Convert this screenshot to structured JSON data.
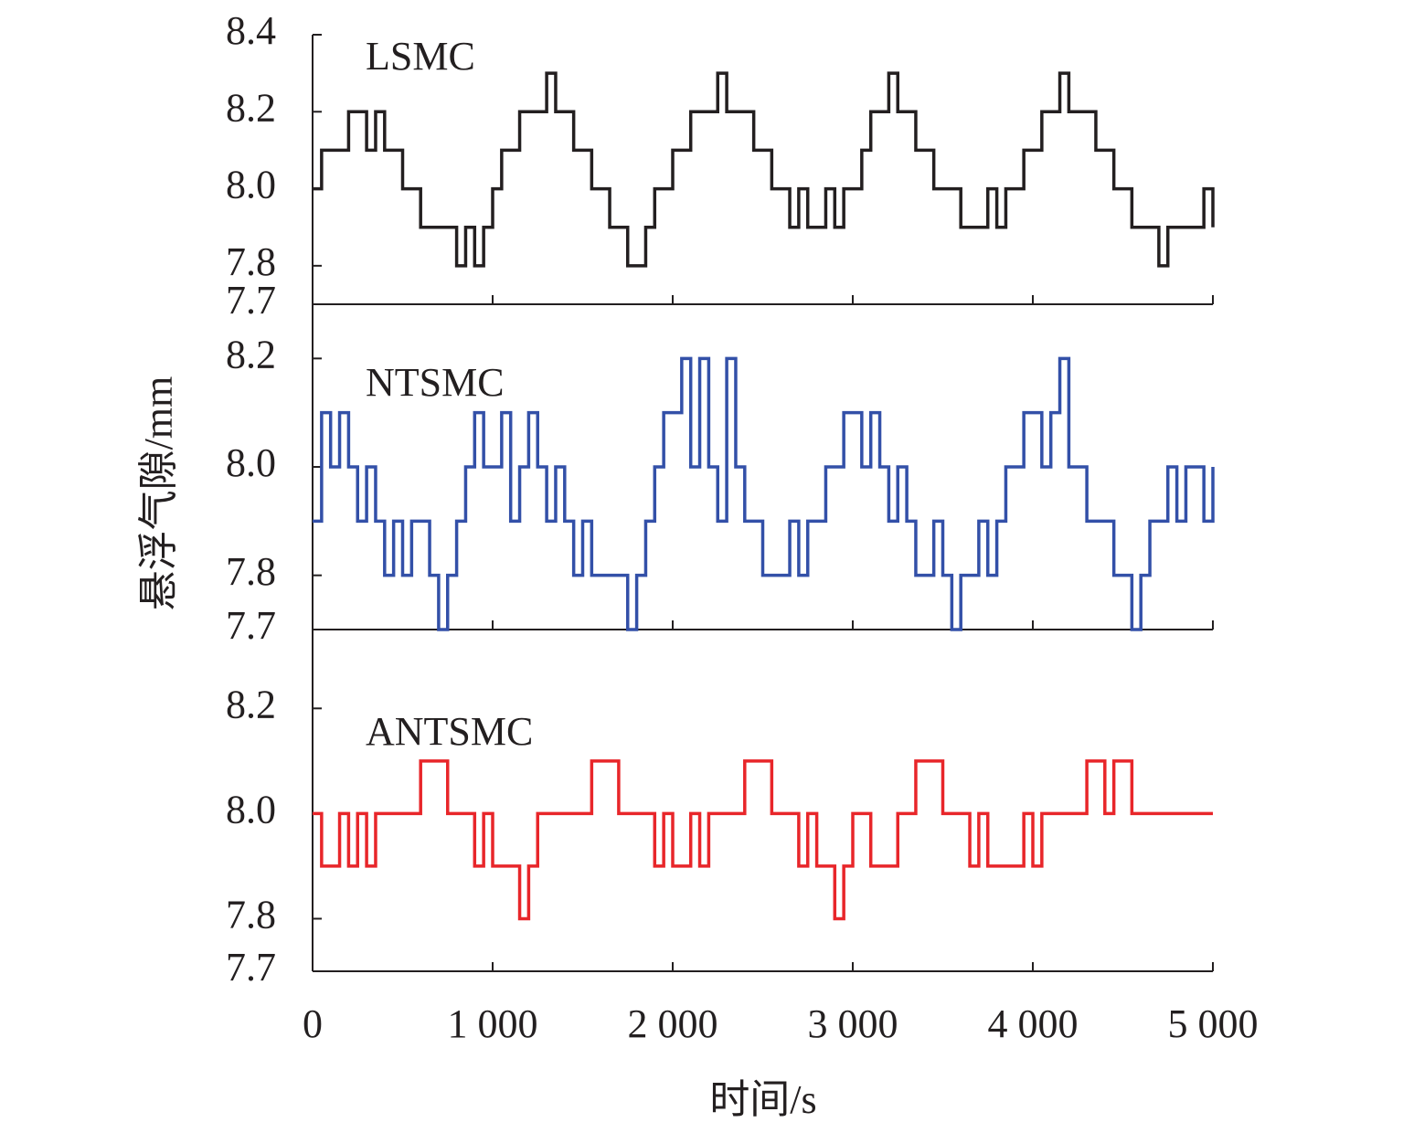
{
  "chart_data": {
    "type": "line",
    "xlabel": "时间/s",
    "ylabel": "悬浮气隙/mm",
    "xlim": [
      0,
      5000
    ],
    "xticks": [
      0,
      {
        "value": 1000,
        "label": "1 000"
      },
      {
        "value": 2000,
        "label": "2 000"
      },
      {
        "value": 3000,
        "label": "3 000"
      },
      {
        "value": 4000,
        "label": "4 000"
      },
      {
        "value": 5000,
        "label": "5 000"
      }
    ],
    "x": [
      0,
      50,
      100,
      150,
      200,
      250,
      300,
      350,
      400,
      450,
      500,
      550,
      600,
      650,
      700,
      750,
      800,
      850,
      900,
      950,
      1000,
      1050,
      1100,
      1150,
      1200,
      1250,
      1300,
      1350,
      1400,
      1450,
      1500,
      1550,
      1600,
      1650,
      1700,
      1750,
      1800,
      1850,
      1900,
      1950,
      2000,
      2050,
      2100,
      2150,
      2200,
      2250,
      2300,
      2350,
      2400,
      2450,
      2500,
      2550,
      2600,
      2650,
      2700,
      2750,
      2800,
      2850,
      2900,
      2950,
      3000,
      3050,
      3100,
      3150,
      3200,
      3250,
      3300,
      3350,
      3400,
      3450,
      3500,
      3550,
      3600,
      3650,
      3700,
      3750,
      3800,
      3850,
      3900,
      3950,
      4000,
      4050,
      4100,
      4150,
      4200,
      4250,
      4300,
      4350,
      4400,
      4450,
      4500,
      4550,
      4600,
      4650,
      4700,
      4750,
      4800,
      4850,
      4900,
      4950,
      5000
    ],
    "series": [
      {
        "name": "LSMC",
        "color": "#231f20",
        "ylim": [
          7.7,
          8.4
        ],
        "yticks": [
          7.7,
          7.8,
          {
            "value": 8,
            "label": "8.0"
          },
          8.2,
          8.4
        ],
        "values": [
          8.0,
          8.1,
          8.1,
          8.1,
          8.2,
          8.2,
          8.1,
          8.2,
          8.1,
          8.1,
          8.0,
          8.0,
          7.9,
          7.9,
          7.9,
          7.9,
          7.8,
          7.9,
          7.8,
          7.9,
          8.0,
          8.1,
          8.1,
          8.2,
          8.2,
          8.2,
          8.3,
          8.2,
          8.2,
          8.1,
          8.1,
          8.0,
          8.0,
          7.9,
          7.9,
          7.8,
          7.8,
          7.9,
          8.0,
          8.0,
          8.1,
          8.1,
          8.2,
          8.2,
          8.2,
          8.3,
          8.2,
          8.2,
          8.2,
          8.1,
          8.1,
          8.0,
          8.0,
          7.9,
          8.0,
          7.9,
          7.9,
          8.0,
          7.9,
          8.0,
          8.0,
          8.1,
          8.2,
          8.2,
          8.3,
          8.2,
          8.2,
          8.1,
          8.1,
          8.0,
          8.0,
          8.0,
          7.9,
          7.9,
          7.9,
          8.0,
          7.9,
          8.0,
          8.0,
          8.1,
          8.1,
          8.2,
          8.2,
          8.3,
          8.2,
          8.2,
          8.2,
          8.1,
          8.1,
          8.0,
          8.0,
          7.9,
          7.9,
          7.9,
          7.8,
          7.9,
          7.9,
          7.9,
          7.9,
          8.0,
          7.9
        ]
      },
      {
        "name": "NTSMC",
        "color": "#3350a8",
        "ylim": [
          7.7,
          8.3
        ],
        "yticks": [
          7.7,
          7.8,
          {
            "value": 8,
            "label": "8.0"
          },
          8.2
        ],
        "values": [
          7.9,
          8.1,
          8.0,
          8.1,
          8.0,
          7.9,
          8.0,
          7.9,
          7.8,
          7.9,
          7.8,
          7.9,
          7.9,
          7.8,
          7.7,
          7.8,
          7.9,
          8.0,
          8.1,
          8.0,
          8.0,
          8.1,
          7.9,
          8.0,
          8.1,
          8.0,
          7.9,
          8.0,
          7.9,
          7.8,
          7.9,
          7.8,
          7.8,
          7.8,
          7.8,
          7.7,
          7.8,
          7.9,
          8.0,
          8.1,
          8.1,
          8.2,
          8.0,
          8.2,
          8.0,
          7.9,
          8.2,
          8.0,
          7.9,
          7.9,
          7.8,
          7.8,
          7.8,
          7.9,
          7.8,
          7.9,
          7.9,
          8.0,
          8.0,
          8.1,
          8.1,
          8.0,
          8.1,
          8.0,
          7.9,
          8.0,
          7.9,
          7.8,
          7.8,
          7.9,
          7.8,
          7.7,
          7.8,
          7.8,
          7.9,
          7.8,
          7.9,
          8.0,
          8.0,
          8.1,
          8.1,
          8.0,
          8.1,
          8.2,
          8.0,
          8.0,
          7.9,
          7.9,
          7.9,
          7.8,
          7.8,
          7.7,
          7.8,
          7.9,
          7.9,
          8.0,
          7.9,
          8.0,
          8.0,
          7.9,
          8.0
        ]
      },
      {
        "name": "ANTSMC",
        "color": "#e8262a",
        "ylim": [
          7.7,
          8.35
        ],
        "yticks": [
          7.7,
          7.8,
          {
            "value": 8,
            "label": "8.0"
          },
          8.2
        ],
        "values": [
          8.0,
          7.9,
          7.9,
          8.0,
          7.9,
          8.0,
          7.9,
          8.0,
          8.0,
          8.0,
          8.0,
          8.0,
          8.1,
          8.1,
          8.1,
          8.0,
          8.0,
          8.0,
          7.9,
          8.0,
          7.9,
          7.9,
          7.9,
          7.8,
          7.9,
          8.0,
          8.0,
          8.0,
          8.0,
          8.0,
          8.0,
          8.1,
          8.1,
          8.1,
          8.0,
          8.0,
          8.0,
          8.0,
          7.9,
          8.0,
          7.9,
          7.9,
          8.0,
          7.9,
          8.0,
          8.0,
          8.0,
          8.0,
          8.1,
          8.1,
          8.1,
          8.0,
          8.0,
          8.0,
          7.9,
          8.0,
          7.9,
          7.9,
          7.8,
          7.9,
          8.0,
          8.0,
          7.9,
          7.9,
          7.9,
          8.0,
          8.0,
          8.1,
          8.1,
          8.1,
          8.0,
          8.0,
          8.0,
          7.9,
          8.0,
          7.9,
          7.9,
          7.9,
          7.9,
          8.0,
          7.9,
          8.0,
          8.0,
          8.0,
          8.0,
          8.0,
          8.1,
          8.1,
          8.0,
          8.1,
          8.1,
          8.0,
          8.0,
          8.0,
          8.0,
          8.0,
          8.0,
          8.0,
          8.0,
          8.0,
          8.0
        ]
      }
    ]
  }
}
